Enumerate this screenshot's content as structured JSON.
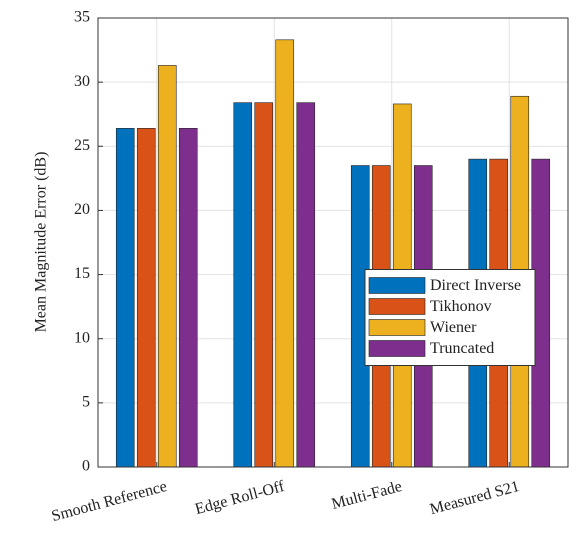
{
  "chart_data": {
    "type": "bar",
    "y_label": "Mean Magnitude Error (dB)",
    "categories": [
      "Smooth Reference",
      "Edge Roll-Off",
      "Multi-Fade",
      "Measured S21"
    ],
    "series": [
      {
        "name": "Direct Inverse",
        "color": "#0072BD",
        "values": [
          26.4,
          28.4,
          23.5,
          24.0
        ]
      },
      {
        "name": "Tikhonov",
        "color": "#D95319",
        "values": [
          26.4,
          28.4,
          23.5,
          24.0
        ]
      },
      {
        "name": "Wiener",
        "color": "#EDB120",
        "values": [
          31.3,
          33.3,
          28.3,
          28.9
        ]
      },
      {
        "name": "Truncated",
        "color": "#7E2F8E",
        "values": [
          26.4,
          28.4,
          23.5,
          24.0
        ]
      }
    ],
    "ylim": [
      0,
      35
    ],
    "yticks": [
      0,
      5,
      10,
      15,
      20,
      25,
      30,
      35
    ],
    "grid": true,
    "legend": "east"
  }
}
